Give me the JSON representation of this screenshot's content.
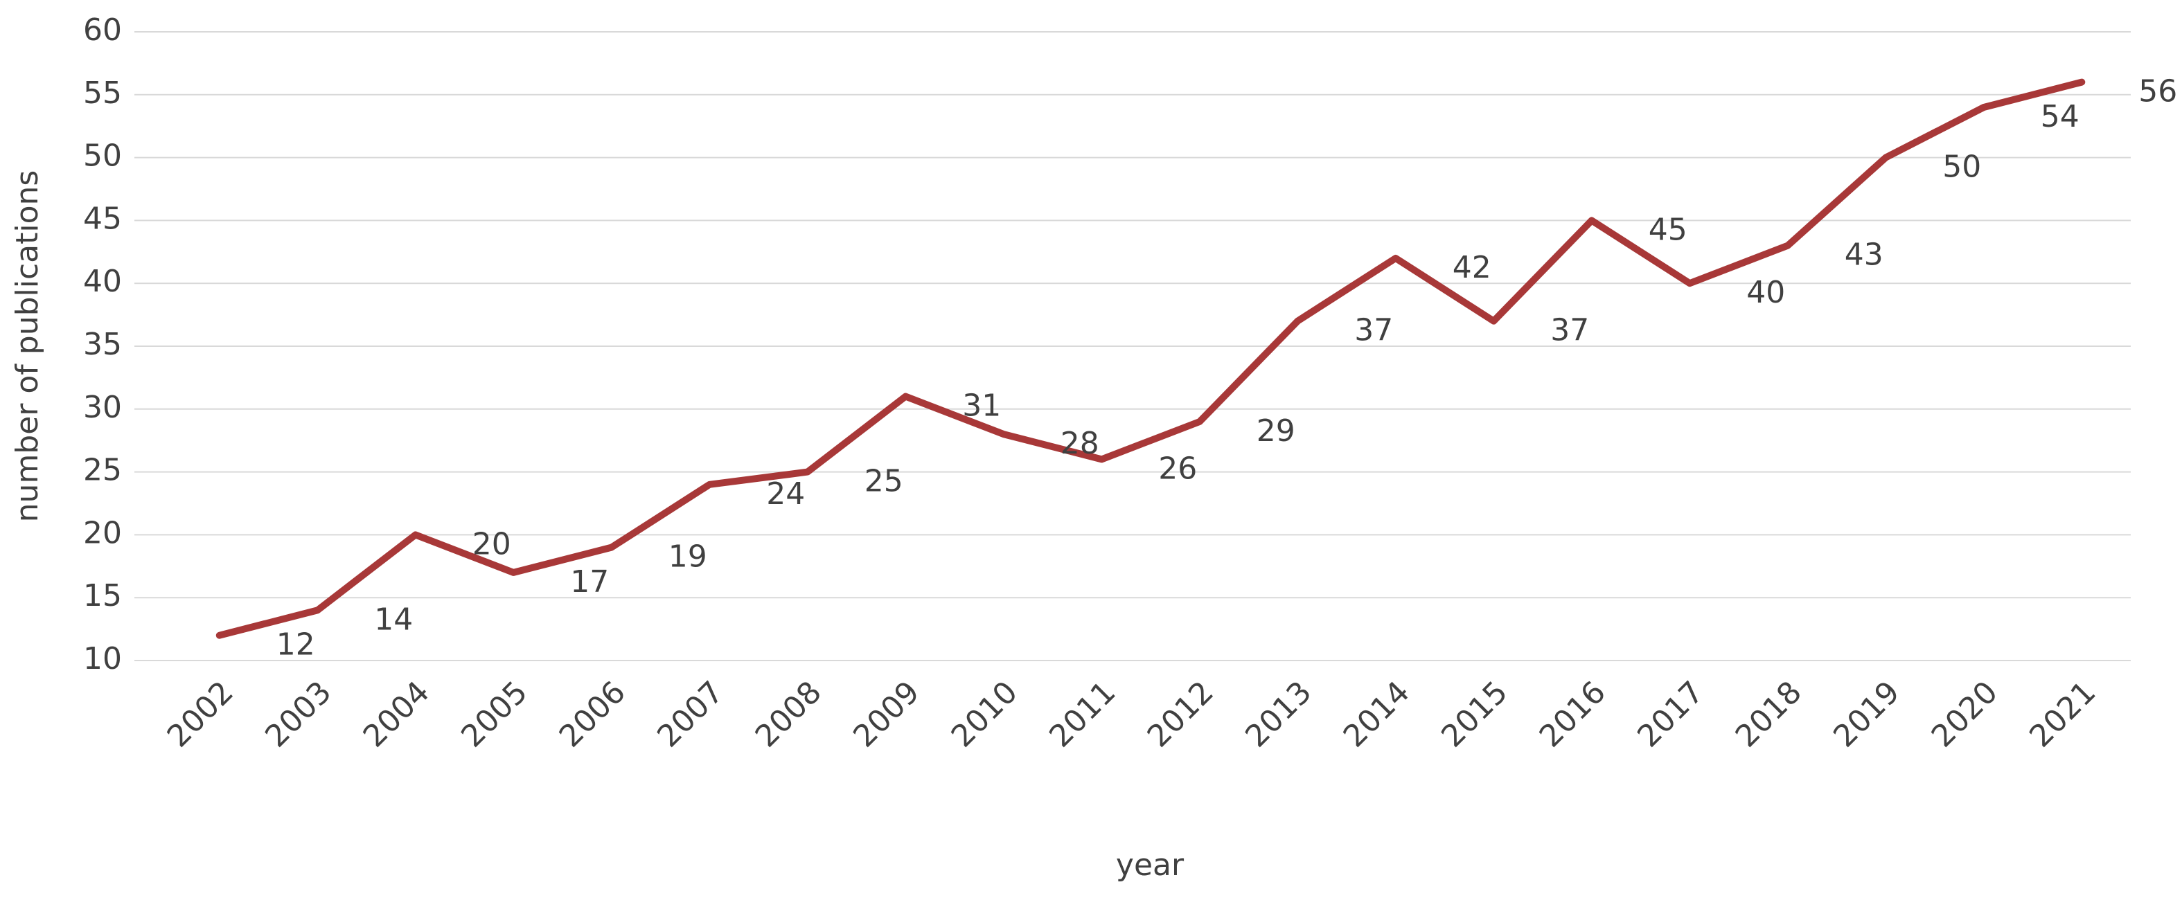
{
  "chart_data": {
    "type": "line",
    "x_label": "year",
    "y_label": "number of publications",
    "categories": [
      "2002",
      "2003",
      "2004",
      "2005",
      "2006",
      "2007",
      "2008",
      "2009",
      "2010",
      "2011",
      "2012",
      "2013",
      "2014",
      "2015",
      "2016",
      "2017",
      "2018",
      "2019",
      "2020",
      "2021"
    ],
    "values": [
      12,
      14,
      20,
      17,
      19,
      24,
      25,
      31,
      28,
      26,
      29,
      37,
      42,
      37,
      45,
      40,
      43,
      50,
      54,
      56
    ],
    "color": "#a83838",
    "ylim": [
      10,
      60
    ],
    "yticks": [
      10,
      15,
      20,
      25,
      30,
      35,
      40,
      45,
      50,
      55,
      60
    ],
    "grid": true
  }
}
